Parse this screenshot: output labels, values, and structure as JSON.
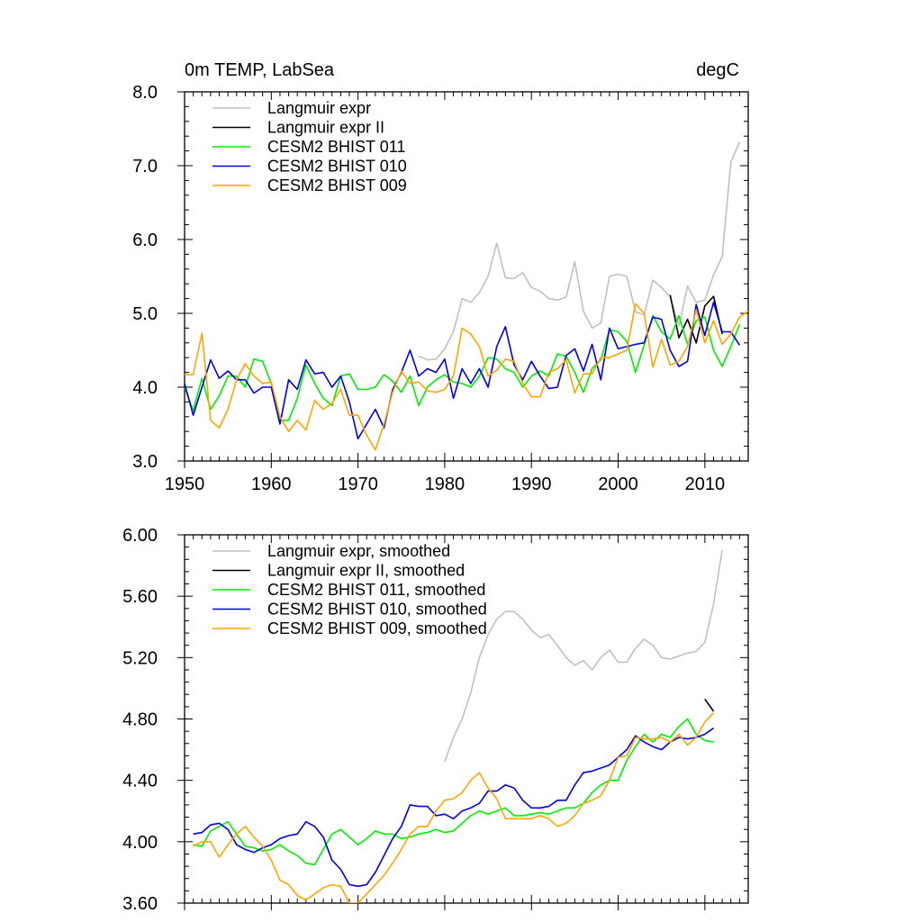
{
  "colors": {
    "langmuir": "#c0c0c0",
    "langmuir2": "#000000",
    "bhist011": "#00ee00",
    "bhist010": "#0000dd",
    "bhist009": "#ffa500"
  },
  "chart_data": [
    {
      "type": "line",
      "title": "0m TEMP, LabSea",
      "units": "degC",
      "xlim": [
        1950,
        2015
      ],
      "ylim": [
        3.0,
        8.0
      ],
      "xticks": [
        1950,
        1960,
        1970,
        1980,
        1990,
        2000,
        2010
      ],
      "xtick_labels": [
        "1950",
        "1960",
        "1970",
        "1980",
        "1990",
        "2000",
        "2010"
      ],
      "yticks": [
        3,
        4,
        5,
        6,
        7,
        8
      ],
      "ytick_labels": [
        "3.0",
        "4.0",
        "5.0",
        "6.0",
        "7.0",
        "8.0"
      ],
      "legend": [
        "Langmuir expr",
        "Langmuir expr II",
        "CESM2 BHIST 011",
        "CESM2 BHIST 010",
        "CESM2 BHIST 009"
      ],
      "series": [
        {
          "name": "Langmuir expr",
          "color_key": "langmuir",
          "x0": 1977,
          "values": [
            4.42,
            4.37,
            4.38,
            4.52,
            4.75,
            5.2,
            5.15,
            5.28,
            5.5,
            5.95,
            5.48,
            5.47,
            5.55,
            5.35,
            5.3,
            5.2,
            5.18,
            5.22,
            5.7,
            5.03,
            4.8,
            4.87,
            5.5,
            5.53,
            5.5,
            5.02,
            4.98,
            5.45,
            5.35,
            5.22,
            4.83,
            5.37,
            5.15,
            5.18,
            5.52,
            5.77,
            7.05,
            7.32
          ]
        },
        {
          "name": "Langmuir expr II",
          "color_key": "langmuir2",
          "x0": 2006,
          "values": [
            5.25,
            4.67,
            4.92,
            4.6,
            5.1,
            5.23,
            4.72
          ]
        },
        {
          "name": "CESM2 BHIST 011",
          "color_key": "bhist011",
          "x0": 1950,
          "values": [
            4.0,
            3.68,
            4.12,
            3.7,
            3.88,
            4.15,
            4.15,
            4.0,
            4.38,
            4.35,
            4.05,
            3.55,
            3.55,
            3.85,
            4.3,
            4.05,
            3.85,
            3.75,
            4.15,
            4.18,
            3.97,
            3.97,
            4.0,
            4.17,
            4.08,
            3.93,
            4.15,
            3.75,
            4.0,
            4.1,
            4.17,
            4.07,
            4.05,
            4.0,
            4.15,
            4.4,
            4.38,
            4.25,
            4.2,
            4.0,
            4.15,
            4.22,
            4.15,
            4.45,
            4.42,
            4.2,
            3.93,
            4.25,
            4.37,
            4.78,
            4.75,
            4.62,
            4.2,
            4.57,
            4.97,
            4.75,
            4.65,
            4.97,
            4.58,
            4.9,
            4.95,
            4.5,
            4.28,
            4.55,
            4.85
          ]
        },
        {
          "name": "CESM2 BHIST 010",
          "color_key": "bhist010",
          "x0": 1950,
          "values": [
            4.05,
            3.62,
            4.0,
            4.37,
            4.12,
            4.22,
            4.1,
            4.1,
            3.92,
            4.0,
            4.0,
            3.5,
            4.1,
            3.97,
            4.37,
            4.18,
            4.2,
            4.0,
            4.15,
            3.8,
            3.3,
            3.5,
            3.7,
            3.45,
            3.97,
            4.2,
            4.5,
            4.15,
            4.25,
            4.2,
            4.38,
            3.85,
            4.25,
            4.05,
            4.25,
            4.0,
            4.55,
            4.82,
            4.3,
            4.1,
            4.35,
            4.15,
            3.98,
            4.0,
            4.43,
            4.52,
            4.22,
            4.58,
            4.1,
            4.8,
            4.52,
            4.55,
            4.58,
            4.6,
            4.95,
            4.92,
            4.5,
            4.28,
            4.35,
            5.12,
            4.7,
            5.15,
            4.75,
            4.75,
            4.57
          ]
        },
        {
          "name": "CESM2 BHIST 009",
          "color_key": "bhist009",
          "x0": 1950,
          "values": [
            4.17,
            4.17,
            4.73,
            3.55,
            3.45,
            3.7,
            4.1,
            4.32,
            4.15,
            4.05,
            4.07,
            3.6,
            3.4,
            3.55,
            3.42,
            3.82,
            3.7,
            3.78,
            3.97,
            3.62,
            3.62,
            3.35,
            3.15,
            3.5,
            3.93,
            4.22,
            4.05,
            4.07,
            3.95,
            3.93,
            3.97,
            4.15,
            4.8,
            4.72,
            4.55,
            4.15,
            4.23,
            4.38,
            4.35,
            4.05,
            3.87,
            3.87,
            4.2,
            4.25,
            4.37,
            3.92,
            4.18,
            4.18,
            4.4,
            4.4,
            4.45,
            4.5,
            5.13,
            5.0,
            4.27,
            4.65,
            4.3,
            4.35,
            4.55,
            5.05,
            4.6,
            4.9,
            4.58,
            4.72,
            4.95,
            5.03
          ]
        }
      ]
    },
    {
      "type": "line",
      "xlim": [
        1950,
        2015
      ],
      "ylim": [
        3.6,
        6.0
      ],
      "xticks": [
        1950,
        1960,
        1970,
        1980,
        1990,
        2000,
        2010
      ],
      "yticks": [
        3.6,
        4.0,
        4.4,
        4.8,
        5.2,
        5.6,
        6.0
      ],
      "ytick_labels": [
        "3.60",
        "4.00",
        "4.40",
        "4.80",
        "5.20",
        "5.60",
        "6.00"
      ],
      "legend": [
        "Langmuir expr, smoothed",
        "Langmuir expr II, smoothed",
        "CESM2 BHIST 011, smoothed",
        "CESM2 BHIST 010, smoothed",
        "CESM2 BHIST 009, smoothed"
      ],
      "series": [
        {
          "name": "Langmuir expr, smoothed",
          "color_key": "langmuir",
          "x0": 1980,
          "values": [
            4.52,
            4.68,
            4.8,
            4.97,
            5.2,
            5.35,
            5.45,
            5.5,
            5.5,
            5.45,
            5.38,
            5.33,
            5.35,
            5.28,
            5.2,
            5.15,
            5.18,
            5.12,
            5.2,
            5.25,
            5.17,
            5.17,
            5.26,
            5.32,
            5.28,
            5.2,
            5.19,
            5.21,
            5.23,
            5.24,
            5.3,
            5.55,
            5.9
          ]
        },
        {
          "name": "Langmuir expr II, smoothed",
          "color_key": "langmuir2",
          "x0": 2010,
          "values": [
            4.93,
            4.85
          ]
        },
        {
          "name": "CESM2 BHIST 011, smoothed",
          "color_key": "bhist011",
          "x0": 1951,
          "values": [
            3.98,
            3.97,
            4.07,
            4.1,
            4.13,
            4.05,
            3.97,
            3.96,
            3.94,
            3.95,
            3.98,
            3.94,
            3.91,
            3.86,
            3.85,
            3.95,
            4.05,
            4.08,
            4.03,
            3.98,
            4.02,
            4.07,
            4.05,
            4.05,
            4.02,
            4.03,
            4.05,
            4.06,
            4.08,
            4.06,
            4.07,
            4.12,
            4.17,
            4.2,
            4.18,
            4.2,
            4.22,
            4.17,
            4.17,
            4.18,
            4.19,
            4.18,
            4.2,
            4.22,
            4.22,
            4.25,
            4.32,
            4.37,
            4.4,
            4.4,
            4.53,
            4.62,
            4.7,
            4.65,
            4.7,
            4.68,
            4.75,
            4.8,
            4.7,
            4.66,
            4.65
          ]
        },
        {
          "name": "CESM2 BHIST 010, smoothed",
          "color_key": "bhist010",
          "x0": 1951,
          "values": [
            4.05,
            4.06,
            4.11,
            4.12,
            4.08,
            3.98,
            3.95,
            3.93,
            3.96,
            3.98,
            4.02,
            4.04,
            4.05,
            4.13,
            4.1,
            4.03,
            3.88,
            3.82,
            3.72,
            3.71,
            3.72,
            3.8,
            3.91,
            4.02,
            4.1,
            4.24,
            4.23,
            4.23,
            4.17,
            4.18,
            4.15,
            4.2,
            4.22,
            4.25,
            4.33,
            4.33,
            4.37,
            4.35,
            4.27,
            4.22,
            4.22,
            4.23,
            4.27,
            4.27,
            4.37,
            4.45,
            4.46,
            4.48,
            4.5,
            4.55,
            4.6,
            4.69,
            4.65,
            4.62,
            4.6,
            4.65,
            4.68,
            4.67,
            4.68,
            4.7,
            4.74
          ]
        },
        {
          "name": "CESM2 BHIST 009, smoothed",
          "color_key": "bhist009",
          "x0": 1951,
          "values": [
            3.97,
            4.0,
            4.0,
            3.9,
            3.98,
            4.05,
            4.1,
            4.03,
            3.97,
            3.88,
            3.75,
            3.72,
            3.65,
            3.62,
            3.66,
            3.7,
            3.72,
            3.71,
            3.6,
            3.6,
            3.66,
            3.72,
            3.78,
            3.86,
            3.95,
            4.05,
            4.1,
            4.1,
            4.2,
            4.27,
            4.28,
            4.32,
            4.4,
            4.45,
            4.35,
            4.28,
            4.15,
            4.15,
            4.15,
            4.15,
            4.17,
            4.15,
            4.1,
            4.12,
            4.17,
            4.25,
            4.27,
            4.3,
            4.4,
            4.55,
            4.56,
            4.68,
            4.67,
            4.67,
            4.68,
            4.65,
            4.7,
            4.63,
            4.68,
            4.78,
            4.84
          ]
        }
      ]
    }
  ]
}
